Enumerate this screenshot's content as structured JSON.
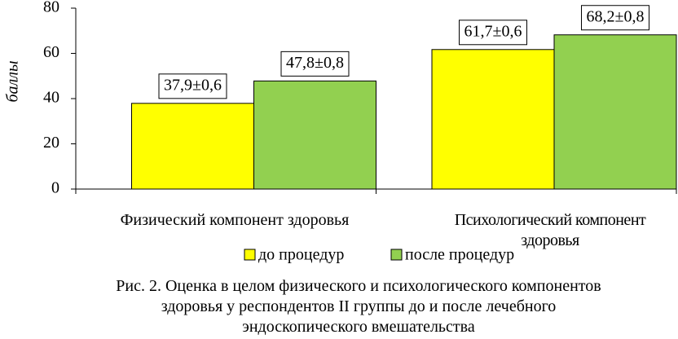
{
  "chart_data": {
    "type": "bar",
    "ylabel": "баллы",
    "categories": [
      "Физический компонент здоровья",
      "Психологический компонент здоровья"
    ],
    "series": [
      {
        "name": "до процедур",
        "color": "#ffff00",
        "values": [
          37.9,
          61.7
        ],
        "value_labels": [
          "37,9±0,6",
          "61,7±0,6"
        ]
      },
      {
        "name": "после процедур",
        "color": "#92d050",
        "values": [
          47.8,
          68.2
        ],
        "value_labels": [
          "47,8±0,8",
          "68,2±0,8"
        ]
      }
    ],
    "ylim": [
      0,
      80
    ],
    "yticks": [
      0,
      20,
      40,
      60,
      80
    ],
    "caption": "Рис. 2. Оценка в целом физического и психологического компонентов здоровья у респондентов II группы до и после лечебного эндоскопического вмешательства"
  }
}
